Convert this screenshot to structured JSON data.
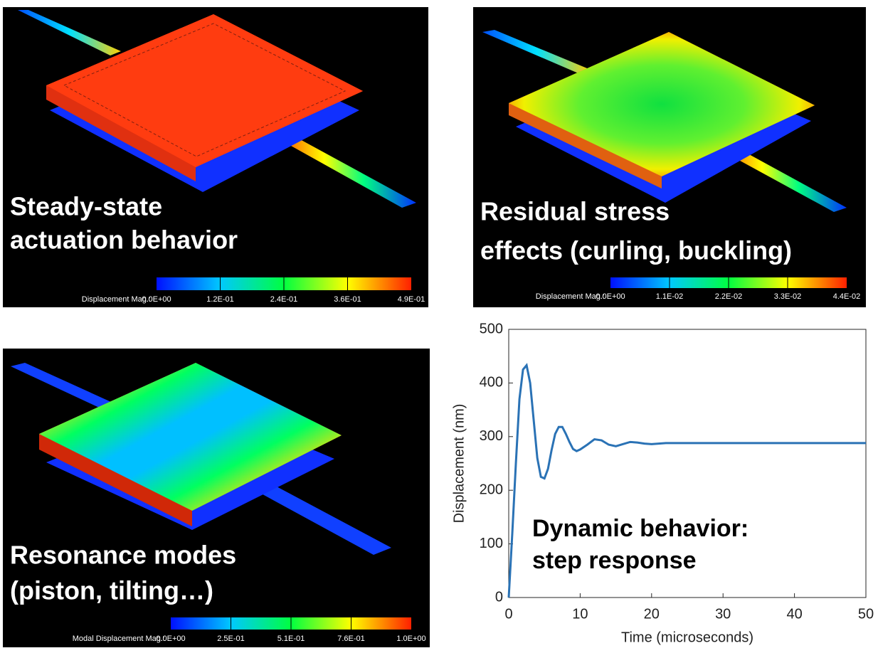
{
  "panels": [
    {
      "caption": [
        "Steady-state",
        "actuation behavior"
      ],
      "colorbar": {
        "label": "Displacement Mag.:",
        "ticks": [
          "0.0E+00",
          "1.2E-01",
          "2.4E-01",
          "3.6E-01",
          "4.9E-01"
        ]
      }
    },
    {
      "caption": [
        "Residual stress",
        "effects (curling, buckling)"
      ],
      "colorbar": {
        "label": "Displacement Mag.:",
        "ticks": [
          "0.0E+00",
          "1.1E-02",
          "2.2E-02",
          "3.3E-02",
          "4.4E-02"
        ]
      }
    },
    {
      "caption": [
        "Resonance modes",
        "(piston, tilting…)"
      ],
      "colorbar": {
        "label": "Modal Displacement Mag.:",
        "ticks": [
          "0.0E+00",
          "2.5E-01",
          "5.1E-01",
          "7.6E-01",
          "1.0E+00"
        ]
      }
    }
  ],
  "chart_data": {
    "type": "line",
    "x_label": "Time (microseconds)",
    "y_label": "Displacement (nm)",
    "annotations": [
      "Dynamic behavior:",
      "step response"
    ],
    "x": [
      0,
      0.5,
      1,
      1.5,
      2,
      2.5,
      3,
      3.5,
      4,
      4.5,
      5,
      5.5,
      6,
      6.5,
      7,
      7.5,
      8,
      8.5,
      9,
      9.5,
      10,
      11,
      12,
      13,
      14,
      15,
      16,
      17,
      18,
      19,
      20,
      22,
      25,
      30,
      40,
      50
    ],
    "series": [
      {
        "name": "Displacement",
        "color": "#2a72b5",
        "values": [
          0,
          120,
          250,
          370,
          425,
          433,
          400,
          330,
          260,
          225,
          222,
          240,
          275,
          305,
          318,
          318,
          305,
          290,
          277,
          273,
          276,
          285,
          295,
          293,
          285,
          282,
          286,
          290,
          289,
          287,
          286,
          288,
          288,
          288,
          288,
          288
        ]
      }
    ],
    "xlim": [
      0,
      50
    ],
    "ylim": [
      0,
      500
    ],
    "xticks": [
      0,
      10,
      20,
      30,
      40,
      50
    ],
    "yticks": [
      0,
      100,
      200,
      300,
      400,
      500
    ]
  }
}
